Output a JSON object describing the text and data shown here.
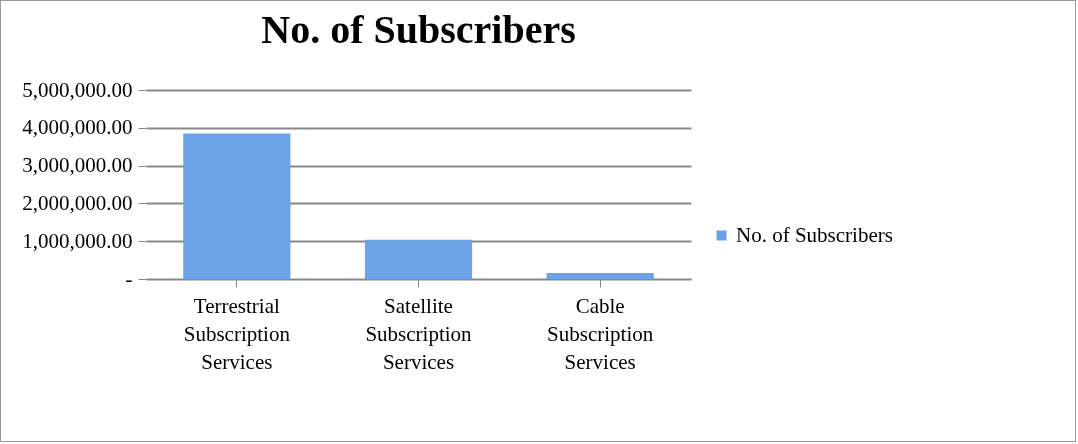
{
  "chart_data": {
    "type": "bar",
    "title": "No. of Subscribers",
    "categories": [
      "Terrestrial Subscription Services",
      "Satellite Subscription Services",
      "Cable Subscription Services"
    ],
    "series": [
      {
        "name": "No. of Subscribers",
        "color": "#6aa3e6",
        "values": [
          3850000,
          1040000,
          160000
        ]
      }
    ],
    "ylim": [
      0,
      5000000
    ],
    "yticks": [
      {
        "value": 0,
        "label": "-"
      },
      {
        "value": 1000000,
        "label": "1,000,000.00"
      },
      {
        "value": 2000000,
        "label": "2,000,000.00"
      },
      {
        "value": 3000000,
        "label": "3,000,000.00"
      },
      {
        "value": 4000000,
        "label": "4,000,000.00"
      },
      {
        "value": 5000000,
        "label": "5,000,000.00"
      }
    ],
    "grid": "y",
    "legend": "right"
  }
}
